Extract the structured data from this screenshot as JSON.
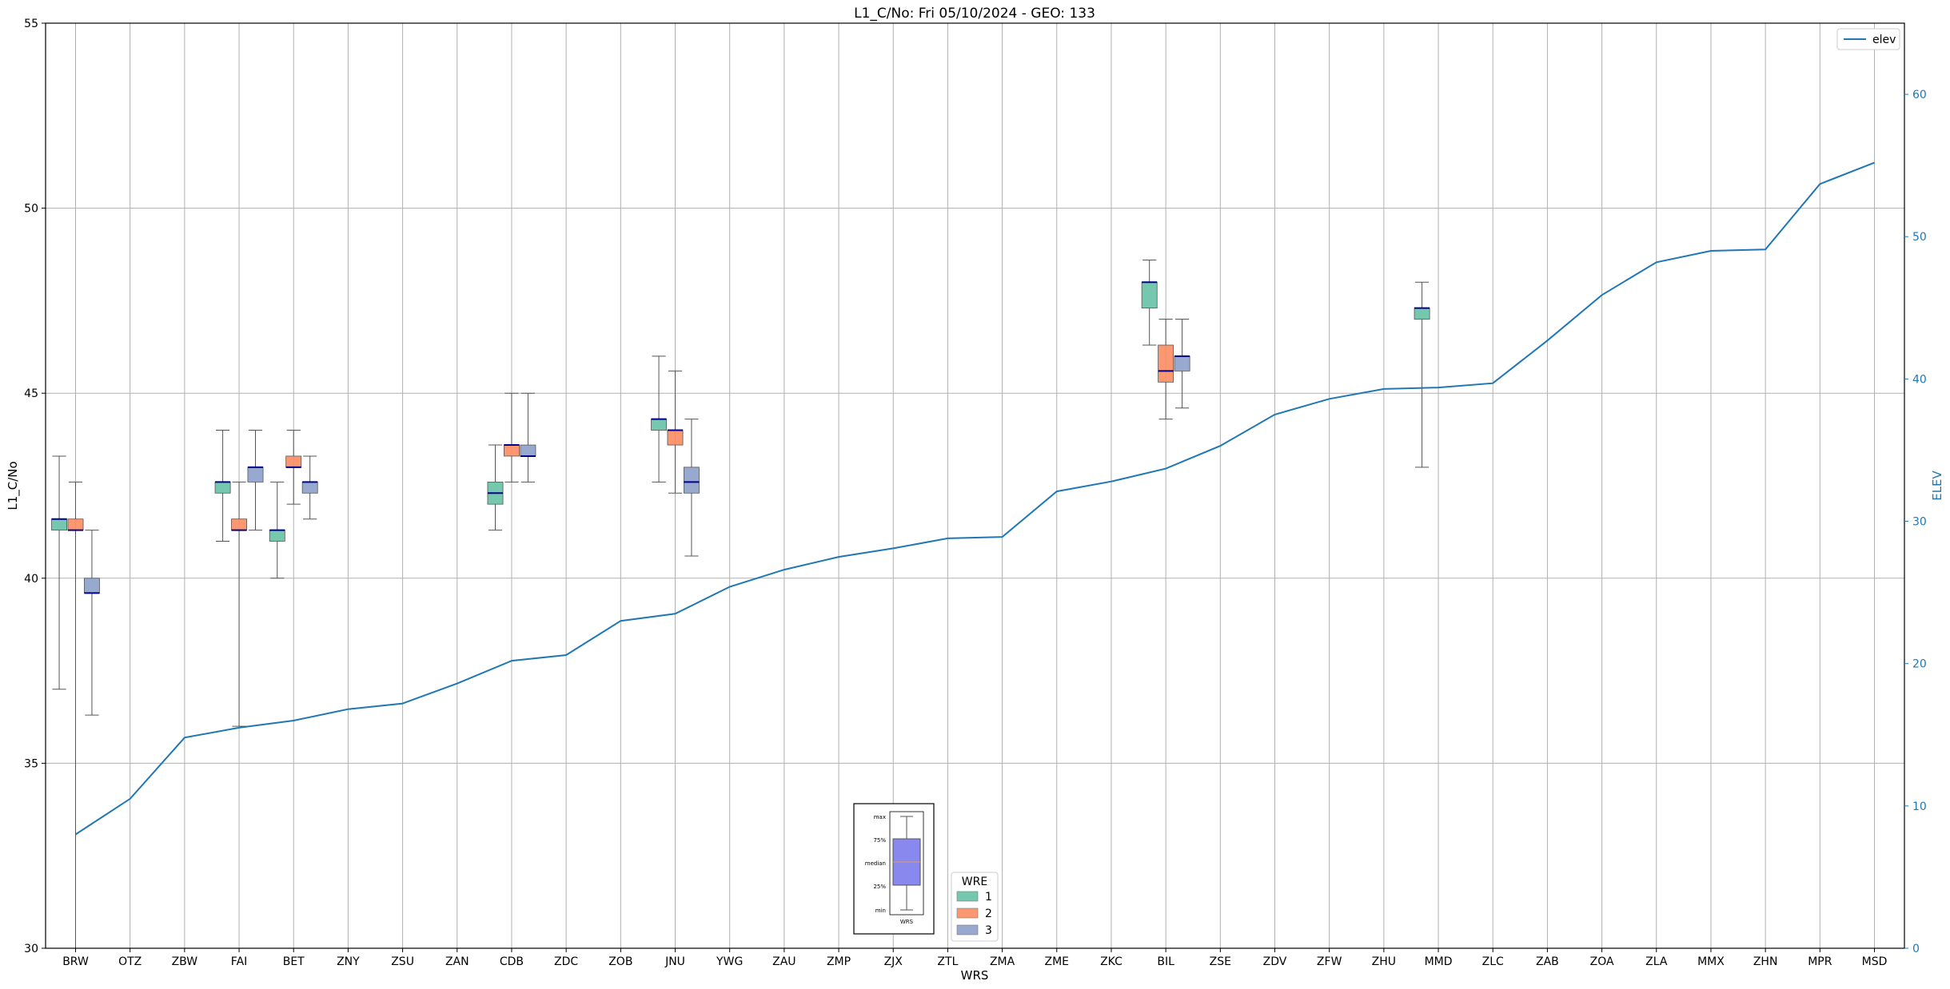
{
  "chart_data": {
    "type": "box",
    "title": "L1_C/No: Fri 05/10/2024 - GEO: 133",
    "xlabel": "WRS",
    "ylabel": "L1_C/No",
    "y2label": "ELEV",
    "ylim": [
      30,
      55
    ],
    "y2lim": [
      0,
      65
    ],
    "yticks": [
      30,
      35,
      40,
      45,
      50,
      55
    ],
    "y2ticks": [
      0,
      10,
      20,
      30,
      40,
      50,
      60
    ],
    "grid": true,
    "categories": [
      "BRW",
      "OTZ",
      "ZBW",
      "FAI",
      "BET",
      "ZNY",
      "ZSU",
      "ZAN",
      "CDB",
      "ZDC",
      "ZOB",
      "JNU",
      "YWG",
      "ZAU",
      "ZMP",
      "ZJX",
      "ZTL",
      "ZMA",
      "ZME",
      "ZKC",
      "BIL",
      "ZSE",
      "ZDV",
      "ZFW",
      "ZHU",
      "MMD",
      "ZLC",
      "ZAB",
      "ZOA",
      "ZLA",
      "MMX",
      "ZHN",
      "MPR",
      "MSD"
    ],
    "elev_series": {
      "name": "elev",
      "color": "#1f77b4",
      "values": [
        8,
        10.5,
        14.8,
        15.5,
        16,
        16.8,
        17.2,
        18.6,
        20.2,
        20.6,
        23,
        23.5,
        25.4,
        26.6,
        27.5,
        28.1,
        28.8,
        28.9,
        32.1,
        32.8,
        33.7,
        35.3,
        37.5,
        38.6,
        39.3,
        39.4,
        39.7,
        42.7,
        45.9,
        48.2,
        49,
        49.1,
        53.7,
        55.2
      ]
    },
    "wre_series": [
      {
        "name": "1",
        "color": "#66c2a5"
      },
      {
        "name": "2",
        "color": "#fc8d62"
      },
      {
        "name": "3",
        "color": "#8da0cb"
      }
    ],
    "boxes": [
      {
        "cat": "BRW",
        "wre": "1",
        "min": 37.0,
        "q1": 41.3,
        "median": 41.6,
        "q3": 41.6,
        "max": 43.3
      },
      {
        "cat": "BRW",
        "wre": "2",
        "min": 30.0,
        "q1": 41.3,
        "median": 41.3,
        "q3": 41.6,
        "max": 42.6
      },
      {
        "cat": "BRW",
        "wre": "3",
        "min": 36.3,
        "q1": 39.6,
        "median": 39.6,
        "q3": 40.0,
        "max": 41.3
      },
      {
        "cat": "FAI",
        "wre": "1",
        "min": 41.0,
        "q1": 42.3,
        "median": 42.6,
        "q3": 42.6,
        "max": 44.0
      },
      {
        "cat": "FAI",
        "wre": "2",
        "min": 36.0,
        "q1": 41.3,
        "median": 41.3,
        "q3": 41.6,
        "max": 42.6
      },
      {
        "cat": "FAI",
        "wre": "3",
        "min": 41.3,
        "q1": 42.6,
        "median": 43.0,
        "q3": 43.0,
        "max": 44.0
      },
      {
        "cat": "BET",
        "wre": "1",
        "min": 40.0,
        "q1": 41.0,
        "median": 41.3,
        "q3": 41.3,
        "max": 42.6
      },
      {
        "cat": "BET",
        "wre": "2",
        "min": 42.0,
        "q1": 43.0,
        "median": 43.0,
        "q3": 43.3,
        "max": 44.0
      },
      {
        "cat": "BET",
        "wre": "3",
        "min": 41.6,
        "q1": 42.3,
        "median": 42.6,
        "q3": 42.6,
        "max": 43.3
      },
      {
        "cat": "CDB",
        "wre": "1",
        "min": 41.3,
        "q1": 42.0,
        "median": 42.3,
        "q3": 42.6,
        "max": 43.6
      },
      {
        "cat": "CDB",
        "wre": "2",
        "min": 42.6,
        "q1": 43.3,
        "median": 43.6,
        "q3": 43.6,
        "max": 45.0
      },
      {
        "cat": "CDB",
        "wre": "3",
        "min": 42.6,
        "q1": 43.3,
        "median": 43.3,
        "q3": 43.6,
        "max": 45.0
      },
      {
        "cat": "JNU",
        "wre": "1",
        "min": 42.6,
        "q1": 44.0,
        "median": 44.3,
        "q3": 44.3,
        "max": 46.0
      },
      {
        "cat": "JNU",
        "wre": "2",
        "min": 42.3,
        "q1": 43.6,
        "median": 44.0,
        "q3": 44.0,
        "max": 45.6
      },
      {
        "cat": "JNU",
        "wre": "3",
        "min": 40.6,
        "q1": 42.3,
        "median": 42.6,
        "q3": 43.0,
        "max": 44.3
      },
      {
        "cat": "BIL",
        "wre": "1",
        "min": 46.3,
        "q1": 47.3,
        "median": 48.0,
        "q3": 48.0,
        "max": 48.6
      },
      {
        "cat": "BIL",
        "wre": "2",
        "min": 44.3,
        "q1": 45.3,
        "median": 45.6,
        "q3": 46.3,
        "max": 47.0
      },
      {
        "cat": "BIL",
        "wre": "3",
        "min": 44.6,
        "q1": 45.6,
        "median": 46.0,
        "q3": 46.0,
        "max": 47.0
      },
      {
        "cat": "MMD",
        "wre": "1",
        "min": 43.0,
        "q1": 47.0,
        "median": 47.3,
        "q3": 47.3,
        "max": 48.0
      }
    ],
    "legend_elev": {
      "label": "elev",
      "placement": "top-right"
    },
    "legend_wre": {
      "title": "WRE",
      "entries": [
        "1",
        "2",
        "3"
      ],
      "placement": "bottom-center"
    },
    "key_labels": {
      "max": "max",
      "q3": "75%",
      "median": "median",
      "q1": "25%",
      "min": "min",
      "x": "WRS"
    }
  }
}
